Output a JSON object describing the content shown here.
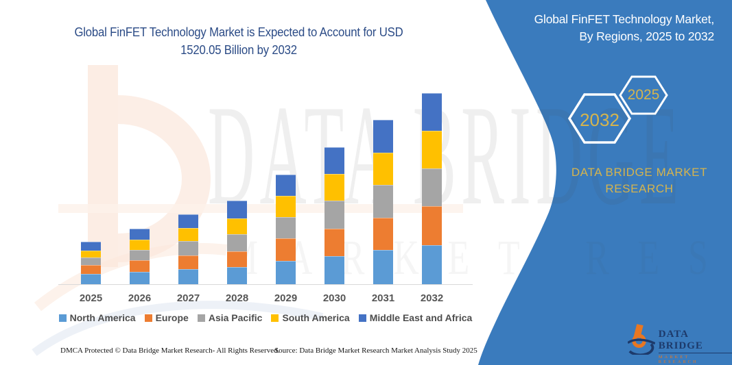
{
  "header": {
    "title_line1": "Global FinFET Technology Market is Expected to Account for USD",
    "title_line2": "1520.05 Billion by 2032"
  },
  "side_panel": {
    "title_line1": "Global FinFET Technology Market,",
    "title_line2": "By Regions, 2025 to 2032",
    "hexagons": [
      {
        "label": "2032"
      },
      {
        "label": "2025"
      }
    ],
    "brand_line1": "DATA BRIDGE MARKET",
    "brand_line2": "RESEARCH"
  },
  "watermark": {
    "line1": "DATA BRIDGE",
    "line2": "MARKET RESEARCH"
  },
  "logo": {
    "name": "DATA BRIDGE",
    "sub": "MARKET RESEARCH"
  },
  "footer": {
    "left": "DMCA Protected © Data Bridge Market Research-  All Rights Reserved.",
    "right": "Source: Data Bridge Market Research  Market Analysis Study 2025"
  },
  "colors": {
    "panel_blue": "#3A7BBD",
    "title_navy": "#2B4B86",
    "accent_gold": "#D5B44E",
    "logo_navy": "#1D3A6B",
    "logo_orange": "#E87722",
    "axis_gray": "#D9D9D9"
  },
  "chart_data": {
    "type": "bar",
    "stacked": true,
    "title": "Global FinFET Technology Market is Expected to Account for USD 1520.05 Billion by 2032",
    "unit": "USD Billion",
    "total_2032": 1520.05,
    "values_estimated": true,
    "xlabel": "",
    "ylabel": "",
    "ylim": [
      0,
      1600
    ],
    "grid": false,
    "legend_position": "bottom",
    "categories": [
      "2025",
      "2026",
      "2027",
      "2028",
      "2029",
      "2030",
      "2031",
      "2032"
    ],
    "series": [
      {
        "name": "North America",
        "color": "#5B9BD5",
        "values": [
          81.7,
          98.1,
          119.9,
          136.2,
          185.2,
          223.4,
          272.4,
          310.5
        ]
      },
      {
        "name": "Europe",
        "color": "#ED7D31",
        "values": [
          70.8,
          92.6,
          109.0,
          125.3,
          179.8,
          217.9,
          256.1,
          310.5
        ]
      },
      {
        "name": "Asia Pacific",
        "color": "#A5A5A5",
        "values": [
          59.9,
          81.7,
          114.4,
          136.2,
          168.9,
          223.4,
          261.5,
          299.7
        ]
      },
      {
        "name": "South America",
        "color": "#FFC000",
        "values": [
          54.5,
          81.7,
          103.5,
          125.3,
          168.9,
          212.5,
          256.1,
          299.7
        ]
      },
      {
        "name": "Middle East and Africa",
        "color": "#4472C4",
        "values": [
          70.8,
          87.2,
          109.0,
          141.7,
          168.9,
          212.5,
          261.5,
          299.7
        ]
      }
    ]
  }
}
